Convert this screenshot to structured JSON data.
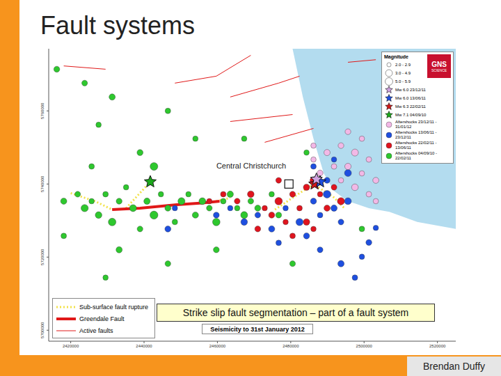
{
  "title": "Fault systems",
  "footer": "Brendan Duffy",
  "caption": "Strike slip fault segmentation – part of a fault system",
  "chart_data": {
    "type": "scatter",
    "title": "Seismicity to 31st January 2012",
    "xlim": [
      2414000,
      2525000
    ],
    "ylim": [
      5697000,
      5777000
    ],
    "xticks": [
      2420000,
      2440000,
      2460000,
      2480000,
      2500000,
      2520000
    ],
    "yticks": [
      5700000,
      5720000,
      5740000,
      5760000
    ],
    "legend": "top-right",
    "logo": [
      "GNS",
      "SCIENCE"
    ],
    "magnitude_title": "Magnitude",
    "magnitude_classes": [
      {
        "min": 2.0,
        "max": 2.9,
        "label": "2.0 - 2.9"
      },
      {
        "min": 3.0,
        "max": 4.9,
        "label": "3.0 - 4.9"
      },
      {
        "min": 5.0,
        "max": 5.9,
        "label": "5.0 - 5.9"
      }
    ],
    "mainshocks": [
      {
        "name": "Mw 6.0 23/12/11",
        "color": "#cfa2e0",
        "marker": "star",
        "x": 2487000,
        "y": 5741300
      },
      {
        "name": "Mw 6.0 13/06/11",
        "color": "#1e4fe0",
        "marker": "star",
        "x": 2488000,
        "y": 5740600
      },
      {
        "name": "Mw 6.3 22/02/11",
        "color": "#d01818",
        "marker": "star",
        "x": 2486500,
        "y": 5740000
      },
      {
        "name": "Mw 7.1 04/09/10",
        "color": "#1aa81a",
        "marker": "star",
        "x": 2441700,
        "y": 5740600
      }
    ],
    "series": [
      {
        "name": "Aftershocks 23/12/11 - 31/01/12",
        "color": "#f2b8e6",
        "marker": "circle",
        "points": [
          [
            2486200,
            5746700,
            3.0
          ],
          [
            2489900,
            5748600,
            3.5
          ],
          [
            2493700,
            5750500,
            3.2
          ],
          [
            2497500,
            5748600,
            4.0
          ],
          [
            2501300,
            5746700,
            3.1
          ],
          [
            2495600,
            5744800,
            3.6
          ],
          [
            2499400,
            5742900,
            3.0
          ],
          [
            2503200,
            5741000,
            3.4
          ],
          [
            2486200,
            5750500,
            3.0
          ],
          [
            2497500,
            5739100,
            3.8
          ],
          [
            2501300,
            5737200,
            3.1
          ],
          [
            2493700,
            5741000,
            3.0
          ],
          [
            2488000,
            5743000,
            3.3
          ],
          [
            2499400,
            5752400,
            3.0
          ],
          [
            2495600,
            5754300,
            3.2
          ],
          [
            2503200,
            5735300,
            3.0
          ],
          [
            2491800,
            5744800,
            3.1
          ]
        ]
      },
      {
        "name": "Aftershocks 13/06/11 - 23/12/11",
        "color": "#1e4fe0",
        "marker": "circle",
        "points": [
          [
            2459700,
            5731500,
            3.3
          ],
          [
            2463500,
            5733400,
            3.0
          ],
          [
            2467300,
            5729600,
            3.8
          ],
          [
            2471000,
            5731500,
            3.2
          ],
          [
            2474800,
            5727700,
            3.5
          ],
          [
            2478600,
            5733400,
            3.0
          ],
          [
            2482400,
            5729600,
            4.2
          ],
          [
            2486200,
            5735300,
            3.4
          ],
          [
            2488000,
            5731500,
            3.1
          ],
          [
            2489900,
            5737200,
            4.5
          ],
          [
            2491800,
            5733400,
            3.6
          ],
          [
            2493700,
            5729600,
            3.2
          ],
          [
            2495600,
            5735300,
            3.9
          ],
          [
            2497500,
            5739100,
            3.0
          ],
          [
            2489900,
            5741000,
            3.3
          ],
          [
            2486200,
            5744800,
            3.1
          ],
          [
            2491800,
            5746700,
            3.0
          ],
          [
            2484300,
            5725800,
            3.4
          ],
          [
            2488000,
            5722000,
            3.2
          ],
          [
            2493700,
            5718200,
            3.6
          ],
          [
            2497500,
            5714400,
            3.1
          ],
          [
            2499400,
            5720100,
            3.0
          ],
          [
            2501300,
            5724000,
            3.3
          ],
          [
            2503200,
            5728000,
            3.0
          ],
          [
            2476700,
            5723900,
            3.1
          ],
          [
            2495600,
            5743000,
            4.0
          ],
          [
            2446500,
            5727700,
            3.4
          ],
          [
            2448400,
            5733400,
            3.0
          ]
        ]
      },
      {
        "name": "Aftershocks 22/02/11 - 13/06/11",
        "color": "#e0141e",
        "marker": "circle",
        "points": [
          [
            2465400,
            5735300,
            3.2
          ],
          [
            2469100,
            5737200,
            3.8
          ],
          [
            2472900,
            5733400,
            3.0
          ],
          [
            2476700,
            5735300,
            4.4
          ],
          [
            2480500,
            5737200,
            3.3
          ],
          [
            2482400,
            5733400,
            3.1
          ],
          [
            2484300,
            5739100,
            3.6
          ],
          [
            2486200,
            5741000,
            4.0
          ],
          [
            2488000,
            5737200,
            3.0
          ],
          [
            2489900,
            5733400,
            3.5
          ],
          [
            2491800,
            5739100,
            3.2
          ],
          [
            2478600,
            5729600,
            3.0
          ],
          [
            2474800,
            5731500,
            3.4
          ],
          [
            2484300,
            5729600,
            3.7
          ],
          [
            2480500,
            5725800,
            3.1
          ],
          [
            2471000,
            5727700,
            3.3
          ],
          [
            2486200,
            5727700,
            3.0
          ],
          [
            2476700,
            5741000,
            3.2
          ],
          [
            2461600,
            5737200,
            3.1
          ],
          [
            2457800,
            5735300,
            3.0
          ],
          [
            2493700,
            5735300,
            4.2
          ]
        ]
      },
      {
        "name": "Aftershocks 04/09/10 - 22/02/11",
        "color": "#2ec82e",
        "marker": "circle",
        "points": [
          [
            2418100,
            5735300,
            3.5
          ],
          [
            2421900,
            5737200,
            3.2
          ],
          [
            2423800,
            5733400,
            4.2
          ],
          [
            2425700,
            5735300,
            3.0
          ],
          [
            2427600,
            5731500,
            3.8
          ],
          [
            2429500,
            5737200,
            3.1
          ],
          [
            2431300,
            5729600,
            4.5
          ],
          [
            2433200,
            5735300,
            3.3
          ],
          [
            2435100,
            5739100,
            3.0
          ],
          [
            2437000,
            5733400,
            4.0
          ],
          [
            2438900,
            5727700,
            3.2
          ],
          [
            2440800,
            5735300,
            3.6
          ],
          [
            2442700,
            5731500,
            4.8
          ],
          [
            2444600,
            5737200,
            3.0
          ],
          [
            2446500,
            5733400,
            3.4
          ],
          [
            2448400,
            5729600,
            3.1
          ],
          [
            2450200,
            5735300,
            4.1
          ],
          [
            2452100,
            5737200,
            3.0
          ],
          [
            2454000,
            5731500,
            3.5
          ],
          [
            2455900,
            5735300,
            3.9
          ],
          [
            2457800,
            5733400,
            3.2
          ],
          [
            2459700,
            5729600,
            4.4
          ],
          [
            2461600,
            5735300,
            3.1
          ],
          [
            2463500,
            5737200,
            3.6
          ],
          [
            2465400,
            5733400,
            3.0
          ],
          [
            2467300,
            5731500,
            4.0
          ],
          [
            2469100,
            5735300,
            3.2
          ],
          [
            2471000,
            5733400,
            3.4
          ],
          [
            2474800,
            5737200,
            3.0
          ],
          [
            2476700,
            5731500,
            3.3
          ],
          [
            2423800,
            5767600,
            3.2
          ],
          [
            2431300,
            5763800,
            3.5
          ],
          [
            2427600,
            5756200,
            3.0
          ],
          [
            2446500,
            5760000,
            3.1
          ],
          [
            2438900,
            5748600,
            3.4
          ],
          [
            2454000,
            5752400,
            3.0
          ],
          [
            2416200,
            5771400,
            3.3
          ],
          [
            2442700,
            5744800,
            4.6
          ],
          [
            2425700,
            5744800,
            3.1
          ],
          [
            2433200,
            5722000,
            3.5
          ],
          [
            2446500,
            5718200,
            3.2
          ],
          [
            2429500,
            5714400,
            3.0
          ],
          [
            2459700,
            5722000,
            3.3
          ],
          [
            2418100,
            5725800,
            3.1
          ],
          [
            2467300,
            5752400,
            3.0
          ],
          [
            2480500,
            5718200,
            3.2
          ],
          [
            2484300,
            5748600,
            3.0
          ],
          [
            2499400,
            5727700,
            3.1
          ]
        ]
      }
    ],
    "faults": [
      {
        "name": "Sub-surface fault rupture",
        "color": "#f2e24a",
        "line_style": "dotted",
        "segments": [
          [
            [
              2420000,
              5737500
            ],
            [
              2426600,
              5735300
            ],
            [
              2431300,
              5733000
            ]
          ],
          [
            [
              2435100,
              5733400
            ],
            [
              2441700,
              5740600
            ]
          ],
          [
            [
              2459700,
              5735300
            ],
            [
              2463500,
              5736200
            ]
          ],
          [
            [
              2475700,
              5733000
            ],
            [
              2482400,
              5737500
            ],
            [
              2486200,
              5740000
            ],
            [
              2491800,
              5736300
            ],
            [
              2494600,
              5733400
            ]
          ]
        ]
      },
      {
        "name": "Greendale Fault",
        "color": "#e01818",
        "line_style": "thick",
        "segments": [
          [
            [
              2431300,
              5733000
            ],
            [
              2438900,
              5733400
            ],
            [
              2448400,
              5734300
            ],
            [
              2455900,
              5734800
            ],
            [
              2460600,
              5735300
            ]
          ]
        ]
      },
      {
        "name": "Active faults",
        "color": "#e01818",
        "line_style": "solid",
        "segments": [
          [
            [
              2448400,
              5767600
            ],
            [
              2459700,
              5769500
            ],
            [
              2469100,
              5775200
            ]
          ],
          [
            [
              2463500,
              5763800
            ],
            [
              2476700,
              5767600
            ],
            [
              2482400,
              5769500
            ]
          ],
          [
            [
              2495600,
              5773300
            ],
            [
              2503200,
              5774000
            ]
          ],
          [
            [
              2463500,
              5757100
            ],
            [
              2480500,
              5759000
            ]
          ],
          [
            [
              2472900,
              5751400
            ],
            [
              2486200,
              5755200
            ]
          ],
          [
            [
              2418100,
              5772300
            ],
            [
              2429500,
              5771400
            ]
          ]
        ]
      }
    ],
    "places": [
      {
        "label": "Central Christchurch",
        "x": 2479500,
        "y": 5740000
      }
    ],
    "sea": [
      [
        2480500,
        5777000
      ],
      [
        2483300,
        5763800
      ],
      [
        2486200,
        5752400
      ],
      [
        2489000,
        5742900
      ],
      [
        2491800,
        5738100
      ],
      [
        2495600,
        5735300
      ],
      [
        2501300,
        5733400
      ],
      [
        2506900,
        5732400
      ],
      [
        2514500,
        5729600
      ],
      [
        2525000,
        5727700
      ]
    ]
  }
}
